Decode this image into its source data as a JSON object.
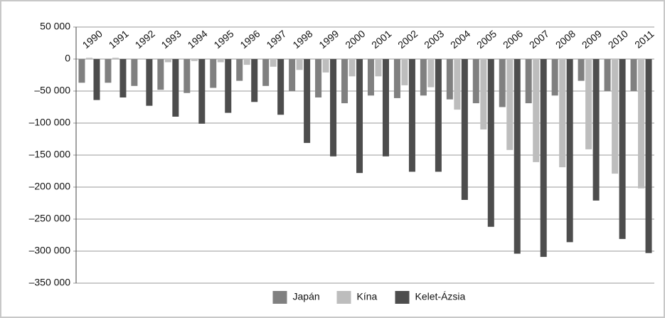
{
  "chart_data": {
    "type": "bar",
    "categories": [
      "1990",
      "1991",
      "1992",
      "1993",
      "1994",
      "1995",
      "1996",
      "1997",
      "1998",
      "1999",
      "2000",
      "2001",
      "2002",
      "2003",
      "2004",
      "2005",
      "2006",
      "2007",
      "2008",
      "2009",
      "2010",
      "2011"
    ],
    "series": [
      {
        "name": "Japán",
        "color": "#808080",
        "values": [
          -37000,
          -37000,
          -42000,
          -48000,
          -53000,
          -45000,
          -34000,
          -42000,
          -50000,
          -60000,
          -69000,
          -57000,
          -61000,
          -57000,
          -63000,
          -69000,
          -75000,
          -69000,
          -57000,
          -34000,
          -50000,
          -50000
        ]
      },
      {
        "name": "Kína",
        "color": "#bdbdbd",
        "values": [
          2000,
          2000,
          0,
          -5000,
          -3000,
          -5000,
          -9000,
          -12000,
          -17000,
          -21000,
          -27000,
          -27000,
          -41000,
          -44000,
          -79000,
          -110000,
          -142000,
          -161000,
          -169000,
          -141000,
          -179000,
          -202000
        ]
      },
      {
        "name": "Kelet-Ázsia",
        "color": "#4d4d4d",
        "values": [
          -64000,
          -60000,
          -73000,
          -90000,
          -101000,
          -84000,
          -67000,
          -87000,
          -131000,
          -152000,
          -178000,
          -152000,
          -176000,
          -176000,
          -220000,
          -262000,
          -304000,
          -309000,
          -286000,
          -221000,
          -281000,
          -303000
        ]
      }
    ],
    "ylim": [
      -350000,
      50000
    ],
    "yticks": [
      {
        "value": 50000,
        "label": "50 000"
      },
      0,
      {
        "value": -50000,
        "label": "–50 000"
      },
      {
        "value": -100000,
        "label": "–100 000"
      },
      {
        "value": -150000,
        "label": "–150 000"
      },
      {
        "value": -200000,
        "label": "–200 000"
      },
      {
        "value": -250000,
        "label": "–250 000"
      },
      {
        "value": -300000,
        "label": "–300 000"
      },
      {
        "value": -350000,
        "label": "–350 000"
      }
    ],
    "grid": true,
    "legend": "bottom"
  }
}
